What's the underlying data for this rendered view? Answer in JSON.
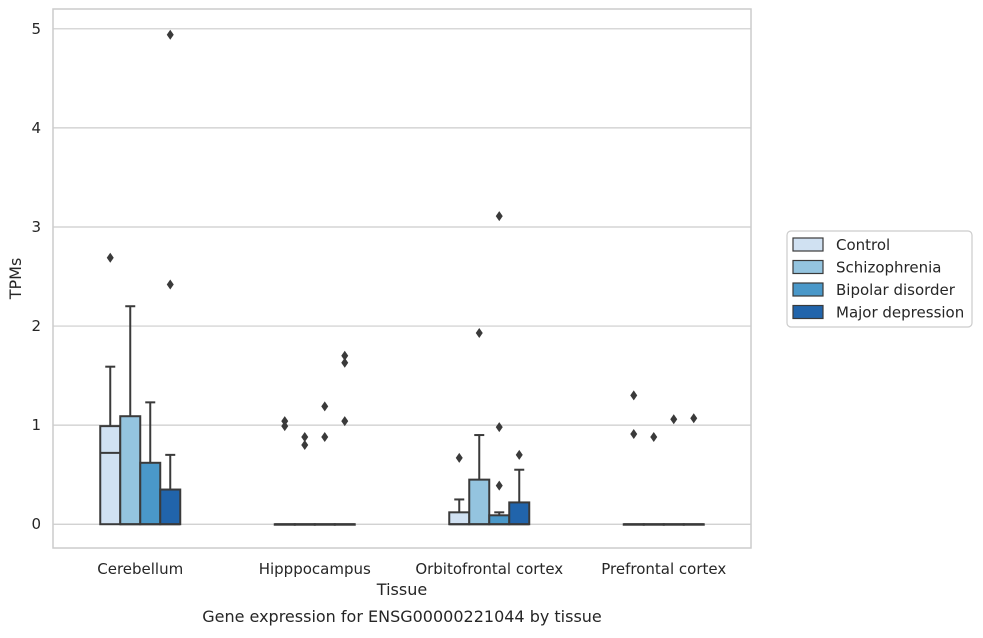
{
  "chart_data": {
    "type": "boxplot",
    "caption": "Gene expression for ENSG00000221044 by tissue",
    "xlabel": "Tissue",
    "ylabel": "TPMs",
    "ylim": [
      -0.24,
      5.2
    ],
    "yticks": [
      0,
      1,
      2,
      3,
      4,
      5
    ],
    "grid": "horizontal",
    "legend_placement": "right",
    "categories": [
      "Cerebellum",
      "Hipppocampus",
      "Orbitofrontal cortex",
      "Prefrontal cortex"
    ],
    "series": [
      {
        "name": "Control",
        "color": "#d0e1f2",
        "boxes": [
          {
            "q1": 0,
            "median": 0.72,
            "q3": 0.99,
            "whisker_low": 0,
            "whisker_high": 1.59,
            "outliers": [
              2.69
            ]
          },
          {
            "q1": 0,
            "median": 0,
            "q3": 0,
            "whisker_low": 0,
            "whisker_high": 0,
            "outliers": [
              0.99,
              1.04
            ]
          },
          {
            "q1": 0,
            "median": 0,
            "q3": 0.12,
            "whisker_low": 0,
            "whisker_high": 0.25,
            "outliers": [
              0.67
            ]
          },
          {
            "q1": 0,
            "median": 0,
            "q3": 0,
            "whisker_low": 0,
            "whisker_high": 0,
            "outliers": [
              0.91,
              1.3
            ]
          }
        ]
      },
      {
        "name": "Schizophrenia",
        "color": "#94c4df",
        "boxes": [
          {
            "q1": 0,
            "median": 0,
            "q3": 1.09,
            "whisker_low": 0,
            "whisker_high": 2.2,
            "outliers": []
          },
          {
            "q1": 0,
            "median": 0,
            "q3": 0,
            "whisker_low": 0,
            "whisker_high": 0,
            "outliers": [
              0.8,
              0.88
            ]
          },
          {
            "q1": 0,
            "median": 0,
            "q3": 0.45,
            "whisker_low": 0,
            "whisker_high": 0.9,
            "outliers": [
              1.93
            ]
          },
          {
            "q1": 0,
            "median": 0,
            "q3": 0,
            "whisker_low": 0,
            "whisker_high": 0,
            "outliers": [
              0.88
            ]
          }
        ]
      },
      {
        "name": "Bipolar disorder",
        "color": "#4a98c9",
        "boxes": [
          {
            "q1": 0,
            "median": 0,
            "q3": 0.62,
            "whisker_low": 0,
            "whisker_high": 1.23,
            "outliers": []
          },
          {
            "q1": 0,
            "median": 0,
            "q3": 0,
            "whisker_low": 0,
            "whisker_high": 0,
            "outliers": [
              0.88,
              1.19
            ]
          },
          {
            "q1": 0,
            "median": 0,
            "q3": 0.09,
            "whisker_low": 0,
            "whisker_high": 0.12,
            "outliers": [
              0.39,
              0.98,
              3.11
            ]
          },
          {
            "q1": 0,
            "median": 0,
            "q3": 0,
            "whisker_low": 0,
            "whisker_high": 0,
            "outliers": [
              1.06
            ]
          }
        ]
      },
      {
        "name": "Major depression",
        "color": "#2164ab",
        "boxes": [
          {
            "q1": 0,
            "median": 0,
            "q3": 0.35,
            "whisker_low": 0,
            "whisker_high": 0.7,
            "outliers": [
              2.42,
              4.94
            ]
          },
          {
            "q1": 0,
            "median": 0,
            "q3": 0,
            "whisker_low": 0,
            "whisker_high": 0,
            "outliers": [
              1.04,
              1.63,
              1.7
            ]
          },
          {
            "q1": 0,
            "median": 0,
            "q3": 0.22,
            "whisker_low": 0,
            "whisker_high": 0.55,
            "outliers": [
              0.7
            ]
          },
          {
            "q1": 0,
            "median": 0,
            "q3": 0,
            "whisker_low": 0,
            "whisker_high": 0,
            "outliers": [
              1.07
            ]
          }
        ]
      }
    ]
  }
}
